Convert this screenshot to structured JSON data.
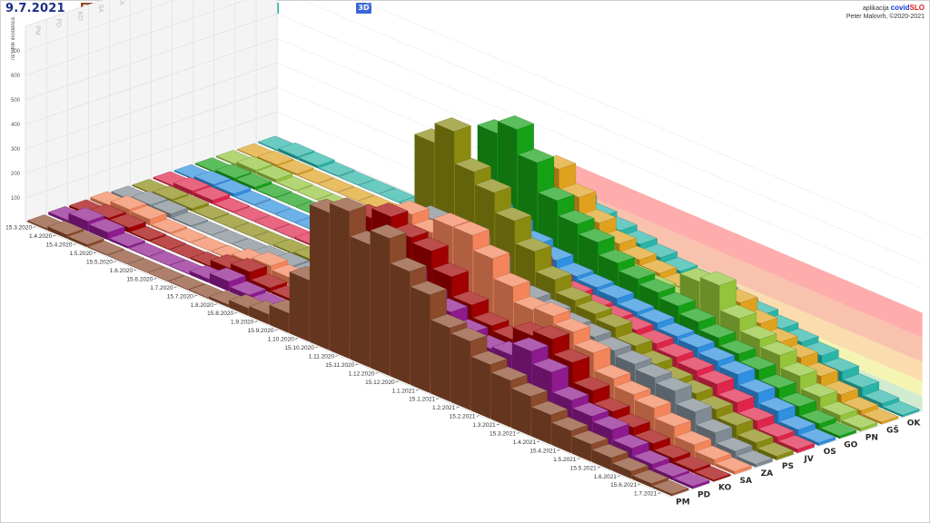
{
  "header": {
    "date": "9.7.2021",
    "mode_button": "3D"
  },
  "credits": {
    "app_prefix": "aplikacija",
    "brand_part1": "covid",
    "brand_part2": "SLO",
    "author": "Peter Malovrh, ©2020-2021"
  },
  "legend": [
    {
      "code": "PM",
      "color": "#8b4a2b"
    },
    {
      "code": "PD",
      "color": "#8e1a8e"
    },
    {
      "code": "KO",
      "color": "#a00000"
    },
    {
      "code": "SA",
      "color": "#f4845a"
    },
    {
      "code": "ZA",
      "color": "#7f8a93"
    },
    {
      "code": "PS",
      "color": "#8a8a10"
    },
    {
      "code": "JV",
      "color": "#e0254a"
    },
    {
      "code": "OS",
      "color": "#2f8fe0"
    },
    {
      "code": "GO",
      "color": "#16a016"
    },
    {
      "code": "PN",
      "color": "#93c43a"
    },
    {
      "code": "GŠ",
      "color": "#e0a21e"
    },
    {
      "code": "OK",
      "color": "#28b4a8"
    }
  ],
  "chart_data": {
    "type": "bar",
    "ylabel": "7d/100k incidenca",
    "yticks": [
      100,
      200,
      300,
      400,
      500,
      600,
      700
    ],
    "ylim": [
      0,
      800
    ],
    "dates": [
      "15.3.2020",
      "1.4.2020",
      "15.4.2020",
      "1.5.2020",
      "15.5.2020",
      "1.6.2020",
      "15.6.2020",
      "1.7.2020",
      "15.7.2020",
      "1.8.2020",
      "15.8.2020",
      "1.9.2020",
      "15.9.2020",
      "1.10.2020",
      "15.10.2020",
      "1.11.2020",
      "15.11.2020",
      "1.12.2020",
      "15.12.2020",
      "1.1.2021",
      "15.1.2021",
      "1.2.2021",
      "15.2.2021",
      "1.3.2021",
      "15.3.2021",
      "1.4.2021",
      "15.4.2021",
      "1.5.2021",
      "15.5.2021",
      "1.6.2021",
      "15.6.2021",
      "1.7.2021"
    ],
    "series": [
      {
        "name": "PM",
        "values": [
          5,
          15,
          10,
          3,
          1,
          1,
          1,
          2,
          3,
          10,
          30,
          40,
          80,
          250,
          560,
          600,
          500,
          560,
          460,
          400,
          300,
          280,
          220,
          190,
          160,
          120,
          90,
          70,
          50,
          30,
          15,
          8
        ]
      },
      {
        "name": "PD",
        "values": [
          10,
          40,
          30,
          8,
          2,
          1,
          2,
          15,
          40,
          20,
          10,
          15,
          40,
          200,
          380,
          430,
          380,
          380,
          330,
          300,
          250,
          220,
          230,
          280,
          230,
          150,
          120,
          100,
          60,
          30,
          15,
          10
        ]
      },
      {
        "name": "KO",
        "values": [
          8,
          25,
          20,
          5,
          2,
          1,
          5,
          30,
          50,
          20,
          10,
          20,
          60,
          260,
          480,
          520,
          470,
          450,
          380,
          300,
          250,
          230,
          280,
          300,
          240,
          160,
          110,
          80,
          50,
          25,
          12,
          6
        ]
      },
      {
        "name": "SA",
        "values": [
          12,
          30,
          25,
          6,
          2,
          1,
          3,
          25,
          45,
          30,
          15,
          20,
          60,
          230,
          430,
          500,
          460,
          520,
          520,
          460,
          380,
          320,
          330,
          300,
          250,
          180,
          150,
          130,
          90,
          50,
          25,
          12
        ]
      },
      {
        "name": "ZA",
        "values": [
          6,
          20,
          18,
          5,
          2,
          1,
          2,
          8,
          15,
          12,
          8,
          15,
          50,
          200,
          400,
          450,
          420,
          430,
          380,
          310,
          300,
          280,
          260,
          250,
          230,
          210,
          190,
          170,
          120,
          70,
          30,
          12
        ]
      },
      {
        "name": "PS",
        "values": [
          4,
          12,
          10,
          3,
          1,
          1,
          1,
          5,
          10,
          8,
          6,
          10,
          40,
          350,
          700,
          780,
          650,
          600,
          520,
          430,
          350,
          300,
          280,
          260,
          220,
          180,
          150,
          130,
          100,
          70,
          35,
          15
        ]
      },
      {
        "name": "JV",
        "values": [
          6,
          18,
          15,
          4,
          1,
          1,
          2,
          6,
          12,
          8,
          6,
          10,
          40,
          230,
          400,
          430,
          380,
          360,
          320,
          280,
          260,
          240,
          230,
          220,
          200,
          180,
          160,
          140,
          100,
          60,
          30,
          15
        ]
      },
      {
        "name": "OS",
        "values": [
          5,
          15,
          12,
          3,
          1,
          1,
          1,
          4,
          8,
          6,
          5,
          10,
          35,
          200,
          360,
          400,
          370,
          330,
          300,
          270,
          260,
          250,
          230,
          220,
          200,
          190,
          170,
          150,
          110,
          70,
          30,
          12
        ]
      },
      {
        "name": "GO",
        "values": [
          4,
          12,
          10,
          3,
          1,
          1,
          1,
          3,
          6,
          5,
          4,
          8,
          40,
          300,
          650,
          700,
          600,
          480,
          420,
          380,
          330,
          300,
          280,
          260,
          230,
          200,
          170,
          140,
          100,
          60,
          25,
          10
        ]
      },
      {
        "name": "PN",
        "values": [
          5,
          15,
          12,
          3,
          1,
          1,
          1,
          4,
          8,
          6,
          5,
          8,
          30,
          180,
          330,
          360,
          330,
          300,
          280,
          260,
          240,
          230,
          220,
          330,
          350,
          250,
          200,
          170,
          120,
          70,
          30,
          12
        ]
      },
      {
        "name": "GŠ",
        "values": [
          3,
          8,
          6,
          2,
          1,
          1,
          1,
          3,
          5,
          4,
          3,
          6,
          25,
          200,
          430,
          480,
          400,
          330,
          280,
          250,
          230,
          210,
          200,
          220,
          250,
          200,
          160,
          130,
          90,
          50,
          20,
          8
        ]
      },
      {
        "name": "OK",
        "values": [
          4,
          12,
          10,
          3,
          1,
          1,
          1,
          3,
          6,
          5,
          4,
          6,
          25,
          160,
          300,
          320,
          290,
          270,
          250,
          230,
          210,
          200,
          190,
          180,
          170,
          150,
          130,
          110,
          80,
          50,
          20,
          8
        ]
      }
    ]
  }
}
